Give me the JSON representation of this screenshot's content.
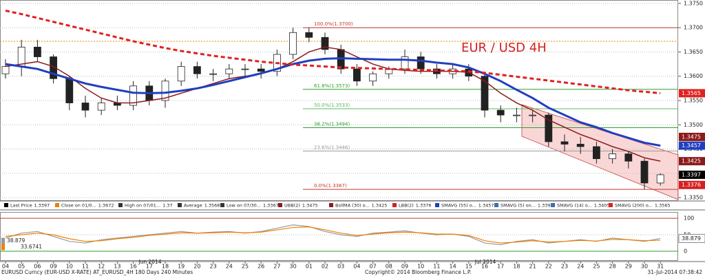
{
  "chart_data": {
    "type": "candlestick",
    "annotation": "EUR / USD 4H",
    "x": [
      "04",
      "05",
      "06",
      "09",
      "10",
      "11",
      "12",
      "13",
      "16",
      "17",
      "18",
      "19",
      "20",
      "23",
      "24",
      "25",
      "26",
      "27",
      "30",
      "01",
      "02",
      "03",
      "04",
      "07",
      "08",
      "09",
      "10",
      "11",
      "14",
      "15",
      "16",
      "17",
      "18",
      "21",
      "22",
      "23",
      "24",
      "25",
      "28",
      "29",
      "30",
      "31"
    ],
    "month_labels": [
      "Jun 2014",
      "Jul 2014"
    ],
    "open": [
      1.3605,
      1.362,
      1.366,
      1.364,
      1.3595,
      1.3545,
      1.353,
      1.3545,
      1.354,
      1.358,
      1.355,
      1.359,
      1.362,
      1.3605,
      1.3605,
      1.3615,
      1.3615,
      1.361,
      1.3645,
      1.369,
      1.368,
      1.3655,
      1.3615,
      1.359,
      1.3605,
      1.3615,
      1.364,
      1.3615,
      1.3605,
      1.3615,
      1.36,
      1.353,
      1.352,
      1.352,
      1.352,
      1.3465,
      1.346,
      1.3455,
      1.343,
      1.344,
      1.3425,
      1.338
    ],
    "high": [
      1.3635,
      1.3675,
      1.3675,
      1.3645,
      1.36,
      1.356,
      1.3555,
      1.356,
      1.359,
      1.359,
      1.3595,
      1.363,
      1.363,
      1.3615,
      1.3625,
      1.3625,
      1.3625,
      1.3655,
      1.37,
      1.37,
      1.369,
      1.3665,
      1.3625,
      1.361,
      1.362,
      1.3655,
      1.365,
      1.3625,
      1.3625,
      1.3625,
      1.3605,
      1.354,
      1.3535,
      1.353,
      1.3525,
      1.348,
      1.3475,
      1.3465,
      1.345,
      1.3445,
      1.343,
      1.34
    ],
    "low": [
      1.3595,
      1.36,
      1.363,
      1.3585,
      1.353,
      1.3515,
      1.352,
      1.353,
      1.353,
      1.354,
      1.3535,
      1.358,
      1.3595,
      1.359,
      1.3595,
      1.36,
      1.3595,
      1.36,
      1.3635,
      1.367,
      1.3645,
      1.3605,
      1.358,
      1.358,
      1.3595,
      1.3605,
      1.3605,
      1.3595,
      1.3595,
      1.359,
      1.3515,
      1.3505,
      1.3505,
      1.3505,
      1.3455,
      1.3445,
      1.344,
      1.342,
      1.342,
      1.341,
      1.3367,
      1.3375
    ],
    "close": [
      1.362,
      1.366,
      1.364,
      1.3595,
      1.3545,
      1.353,
      1.3545,
      1.354,
      1.358,
      1.355,
      1.359,
      1.362,
      1.3605,
      1.3605,
      1.3615,
      1.3615,
      1.361,
      1.3645,
      1.369,
      1.368,
      1.3655,
      1.3615,
      1.359,
      1.3605,
      1.3615,
      1.364,
      1.3615,
      1.3605,
      1.3615,
      1.36,
      1.353,
      1.352,
      1.352,
      1.352,
      1.3465,
      1.346,
      1.3455,
      1.343,
      1.344,
      1.3425,
      1.338,
      1.3397
    ],
    "ylim": [
      1.3343,
      1.3757
    ],
    "yticks": [
      {
        "value": 1.375,
        "label": "1.3750"
      },
      {
        "value": 1.37,
        "label": "1.3700"
      },
      {
        "value": 1.365,
        "label": "1.3650"
      },
      {
        "value": 1.36,
        "label": "1.3600"
      },
      {
        "value": 1.355,
        "label": "1.3550"
      },
      {
        "value": 1.35,
        "label": "1.3500"
      },
      {
        "value": 1.345,
        "label": "1.3450"
      },
      {
        "value": 1.34,
        "label": "1.3400"
      },
      {
        "value": 1.335,
        "label": "1.3350"
      }
    ],
    "grid": true,
    "fib_levels": [
      {
        "label": "100.0%(1.3700)",
        "value": 1.37,
        "color": "#c0392b"
      },
      {
        "label": "61.8%(1.3573)",
        "value": 1.3573,
        "color": "#2e9e2e"
      },
      {
        "label": "50.0%(1.3533)",
        "value": 1.3533,
        "color": "#5cb85c"
      },
      {
        "label": "38.2%(1.3494)",
        "value": 1.3494,
        "color": "#2e9e2e"
      },
      {
        "label": "23.6%(1.3446)",
        "value": 1.3446,
        "color": "#999999"
      },
      {
        "label": "0.0%(1.3367)",
        "value": 1.3367,
        "color": "#c0392b"
      }
    ],
    "legend": [
      {
        "label": "Last Price",
        "value": 1.3397,
        "color": "#000000",
        "tag": true
      },
      {
        "label": "Close on 01/0...",
        "value": 1.3672,
        "color": "#f08000",
        "hline": true
      },
      {
        "label": "High on 07/01...",
        "value": 1.37,
        "color": "#333333"
      },
      {
        "label": "Average",
        "value": 1.3568,
        "color": "#333333"
      },
      {
        "label": "Low on 07/30...",
        "value": 1.3367,
        "color": "#333333"
      },
      {
        "label": "UBB(2)",
        "value": 1.3475,
        "color": "#8b1a1a",
        "tag": true
      },
      {
        "label": "BollMA (30) o...",
        "value": 1.3425,
        "color": "#8b1a1a",
        "tag": true,
        "values": [
          1.362,
          1.3625,
          1.363,
          1.362,
          1.36,
          1.3575,
          1.3555,
          1.3545,
          1.3545,
          1.355,
          1.3555,
          1.3565,
          1.3575,
          1.3585,
          1.3595,
          1.36,
          1.3605,
          1.3615,
          1.363,
          1.365,
          1.366,
          1.3655,
          1.364,
          1.3625,
          1.3615,
          1.3612,
          1.361,
          1.361,
          1.361,
          1.3608,
          1.359,
          1.3565,
          1.3545,
          1.353,
          1.351,
          1.3495,
          1.348,
          1.3468,
          1.3455,
          1.3445,
          1.3432,
          1.3425
        ]
      },
      {
        "label": "LBB(2)",
        "value": 1.3376,
        "color": "#d42020",
        "tag": true
      },
      {
        "label": "SMAVG (55) o...",
        "value": 1.3457,
        "color": "#1f3fbf",
        "tag": true,
        "values": [
          1.3625,
          1.362,
          1.3615,
          1.3605,
          1.3595,
          1.3585,
          1.3578,
          1.3572,
          1.3566,
          1.3565,
          1.3566,
          1.357,
          1.3575,
          1.3582,
          1.359,
          1.3598,
          1.3606,
          1.3615,
          1.3625,
          1.3632,
          1.3636,
          1.3637,
          1.3636,
          1.3635,
          1.3634,
          1.3634,
          1.3632,
          1.3628,
          1.3625,
          1.3618,
          1.3605,
          1.359,
          1.3572,
          1.3555,
          1.3535,
          1.352,
          1.3505,
          1.3495,
          1.3483,
          1.3473,
          1.3463,
          1.3457
        ]
      },
      {
        "label": "SMAVG (5) on...",
        "value": 1.3393,
        "color": "#3a6fb0"
      },
      {
        "label": "SMAVG (14) o...",
        "value": 1.3405,
        "color": "#3a6fb0"
      },
      {
        "label": "SMAVG (200) o...",
        "value": 1.3565,
        "color": "#e02020",
        "tag": true,
        "dashed": true,
        "values": [
          1.3735,
          1.3728,
          1.372,
          1.3712,
          1.3704,
          1.3696,
          1.3688,
          1.368,
          1.3672,
          1.3665,
          1.3658,
          1.3652,
          1.3647,
          1.3642,
          1.3638,
          1.3634,
          1.363,
          1.3627,
          1.3624,
          1.3622,
          1.362,
          1.3618,
          1.3617,
          1.3616,
          1.3615,
          1.3614,
          1.3613,
          1.3612,
          1.3611,
          1.361,
          1.3607,
          1.3603,
          1.3599,
          1.3595,
          1.3591,
          1.3587,
          1.3583,
          1.3579,
          1.3575,
          1.3571,
          1.3568,
          1.3565
        ]
      }
    ],
    "oscillator": {
      "ylim": [
        -25,
        115
      ],
      "yticks": [
        0,
        50,
        100
      ],
      "series": [
        {
          "color": "#999999",
          "values": [
            40,
            55,
            60,
            45,
            30,
            25,
            35,
            40,
            45,
            50,
            55,
            60,
            55,
            58,
            60,
            55,
            60,
            70,
            80,
            75,
            60,
            50,
            45,
            55,
            58,
            62,
            55,
            50,
            52,
            45,
            25,
            20,
            30,
            35,
            25,
            30,
            35,
            30,
            40,
            35,
            30,
            38.879
          ]
        },
        {
          "color": "#f08000",
          "values": [
            45,
            50,
            55,
            50,
            38,
            30,
            32,
            38,
            42,
            48,
            52,
            56,
            55,
            56,
            58,
            56,
            58,
            65,
            72,
            74,
            65,
            55,
            48,
            52,
            56,
            58,
            56,
            52,
            52,
            48,
            32,
            25,
            28,
            32,
            28,
            30,
            33,
            31,
            36,
            35,
            32,
            33.6741
          ]
        }
      ]
    },
    "footer": {
      "source": "EURUSD Curncy (EUR-USD X-RATE) AT_EURUSD_4H 180 Days 240 Minutes",
      "copyright": "Copyright© 2014 Bloomberg Finance L.P.",
      "timestamp": "31-Jul-2014 07:38:42"
    }
  }
}
